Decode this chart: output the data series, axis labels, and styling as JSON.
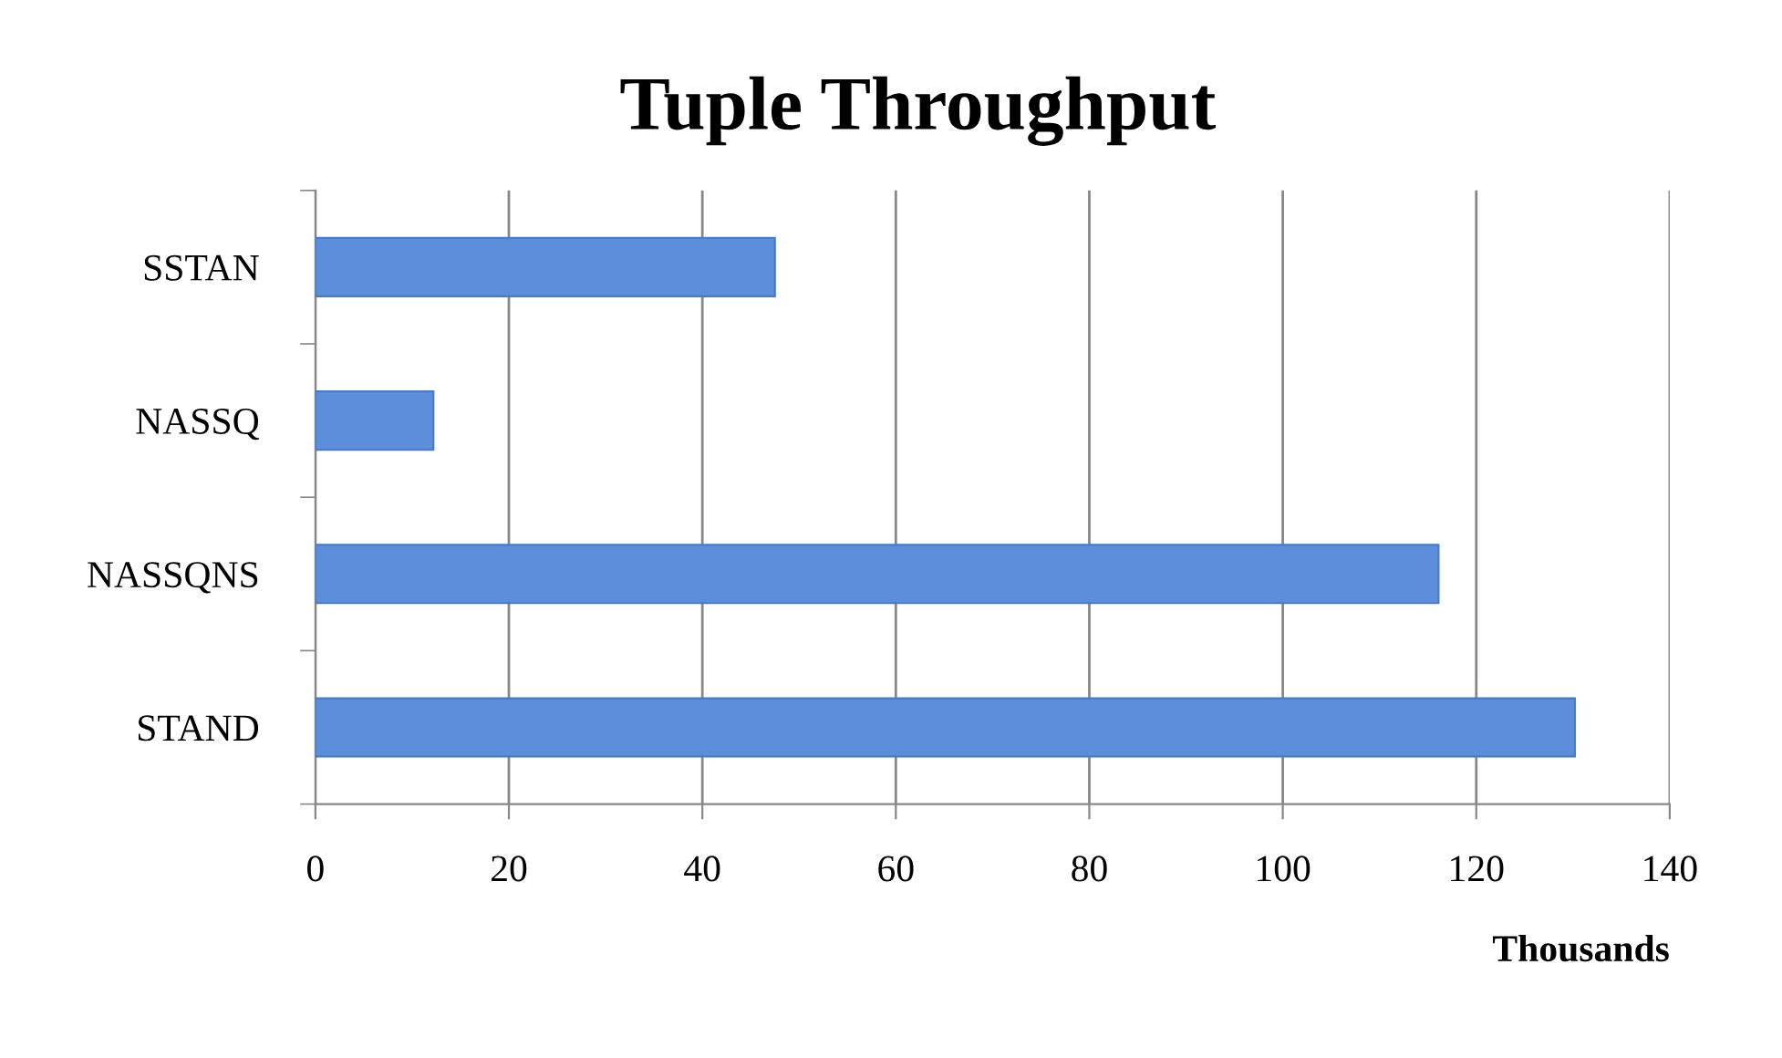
{
  "chart_data": {
    "type": "bar",
    "title": "Tuple Throughput",
    "orientation": "horizontal",
    "categories": [
      "SSTAN",
      "NASSQ",
      "NASSQNS",
      "STAND"
    ],
    "values": [
      47.5,
      12.2,
      116.1,
      130.2
    ],
    "color": "#5b8fdc",
    "xlim": [
      0,
      140
    ],
    "xticks": [
      0,
      20,
      40,
      60,
      80,
      100,
      120,
      140
    ],
    "xlabel": "Thousands",
    "grid": "x",
    "legend": false
  }
}
